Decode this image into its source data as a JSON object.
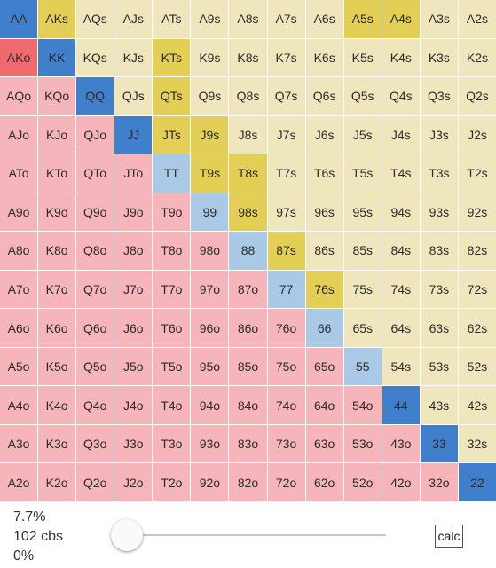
{
  "grid": {
    "ranks": [
      "A",
      "K",
      "Q",
      "J",
      "T",
      "9",
      "8",
      "7",
      "6",
      "5",
      "4",
      "3",
      "2"
    ],
    "colors": {
      "pair": "#a9c9e6",
      "suited": "#f0e6bd",
      "offsuit": "#f6b4bb",
      "highlight_blue": "#3f7fcc",
      "highlight_yellow": "#e3cf55",
      "highlight_red": "#ee6a6e"
    },
    "selected": {
      "AA": "blue",
      "KK": "blue",
      "QQ": "blue",
      "JJ": "blue",
      "44": "blue",
      "33": "blue",
      "22": "blue",
      "AKs": "yellow",
      "A5s": "yellow",
      "A4s": "yellow",
      "KTs": "yellow",
      "QTs": "yellow",
      "JTs": "yellow",
      "J9s": "yellow",
      "T9s": "yellow",
      "T8s": "yellow",
      "98s": "yellow",
      "87s": "yellow",
      "76s": "yellow",
      "AKo": "red"
    }
  },
  "footer": {
    "percent": "7.7%",
    "combos": "102 cbs",
    "slider_value": "0%",
    "calc_label": "calc"
  }
}
